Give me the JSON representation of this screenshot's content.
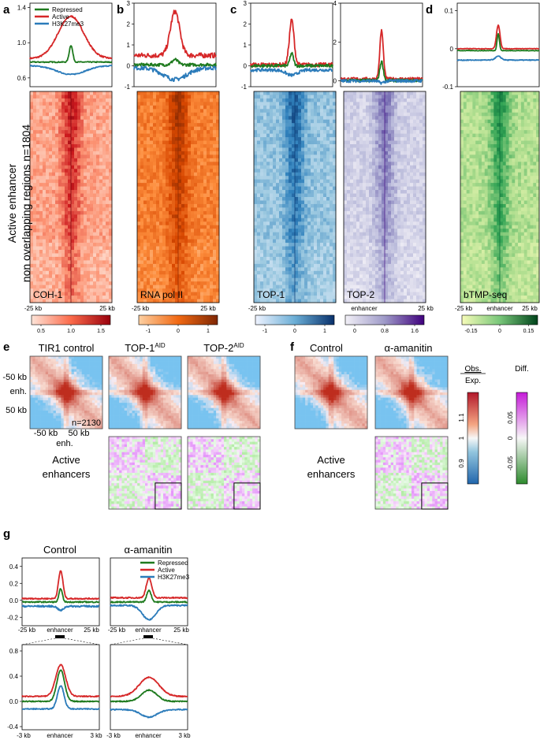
{
  "panel_labels": {
    "a": "a",
    "b": "b",
    "c": "c",
    "d": "d",
    "e": "e",
    "f": "f",
    "g": "g"
  },
  "colors": {
    "repressed": "#1e7a1e",
    "active": "#d62728",
    "h3k27me3": "#2b7bba"
  },
  "legend": {
    "repressed": "Repressed",
    "active": "Active",
    "h3k27me3": "H3K27me3"
  },
  "heatmap_ylabel_1": "Active enhancer",
  "heatmap_ylabel_2": "non overlapping regions n=1804",
  "profile_xticks": {
    "left": "-25 kb",
    "mid": "enhancer",
    "right": "25 kb"
  },
  "hic": {
    "titles": {
      "tir1": "TIR1 control",
      "top1": "TOP-1",
      "top2": "TOP-2",
      "sup": "AID",
      "control": "Control",
      "amanitin": "α-amanitin"
    },
    "yticks": [
      "-50 kb",
      "enh.",
      "50 kb"
    ],
    "xticks": [
      "-50 kb",
      "50 kb"
    ],
    "xmid": "enh.",
    "n": "n=2130",
    "row_label_1": "Active",
    "row_label_2": "enhancers",
    "cbar_obs": "Obs.",
    "cbar_exp": "Exp.",
    "cbar_diff": "Diff.",
    "cbar_obs_ticks": [
      "1.1",
      "1",
      "0.9"
    ],
    "cbar_diff_ticks": [
      "0.05",
      "0",
      "-0.05"
    ]
  },
  "g": {
    "title_control": "Control",
    "title_amanitin": "α-amanitin",
    "top_xticks": [
      "-25 kb",
      "enhancer",
      "25 kb"
    ],
    "bottom_xticks": [
      "-3 kb",
      "enhancer",
      "3 kb"
    ]
  },
  "chart_data": [
    {
      "id": "a",
      "type": "line",
      "title": "COH-1",
      "ylim": [
        0.5,
        1.45
      ],
      "yticks": [
        "0.6",
        "1.0",
        "1.4"
      ],
      "series": [
        {
          "name": "Active",
          "peak": 1.3,
          "base": 0.82,
          "width": 0.22,
          "dip": 0,
          "noise": 0.015
        },
        {
          "name": "Repressed",
          "peak": 0.97,
          "base": 0.78,
          "width": 0.03,
          "dip": 0,
          "noise": 0.01
        },
        {
          "name": "H3K27me3",
          "peak": 0.64,
          "base": 0.74,
          "width": 0.25,
          "dip": 1,
          "noise": 0.01
        }
      ],
      "heatmap": {
        "label": "COH-1",
        "cmap": "Reds",
        "cbar_ticks": [
          "0.5",
          "1.0",
          "1.5"
        ]
      }
    },
    {
      "id": "b",
      "type": "line",
      "title": "RNA pol II",
      "ylim": [
        -1,
        3
      ],
      "yticks": [
        "-1",
        "0",
        "1",
        "2",
        "3"
      ],
      "series": [
        {
          "name": "Active",
          "peak": 2.6,
          "base": 0.5,
          "width": 0.08,
          "dip": 0,
          "noise": 0.05
        },
        {
          "name": "Repressed",
          "peak": 0.3,
          "base": 0.05,
          "width": 0.05,
          "dip": 0,
          "noise": 0.03
        },
        {
          "name": "H3K27me3",
          "peak": -0.65,
          "base": -0.1,
          "width": 0.2,
          "dip": 1,
          "noise": 0.04
        }
      ],
      "heatmap": {
        "label": "RNA pol II",
        "cmap": "Oranges",
        "cbar_ticks": [
          "-1",
          "0",
          "1"
        ]
      }
    },
    {
      "id": "c1",
      "type": "line",
      "title": "TOP-1",
      "ylim": [
        -1,
        3
      ],
      "yticks": [
        "-1",
        "0",
        "1",
        "2",
        "3"
      ],
      "series": [
        {
          "name": "Active",
          "peak": 2.2,
          "base": 0.05,
          "width": 0.04,
          "dip": 0,
          "noise": 0.04
        },
        {
          "name": "Repressed",
          "peak": 0.6,
          "base": 0.0,
          "width": 0.03,
          "dip": 0,
          "noise": 0.03
        },
        {
          "name": "H3K27me3",
          "peak": -0.45,
          "base": -0.2,
          "width": 0.1,
          "dip": 1,
          "noise": 0.03
        }
      ],
      "heatmap": {
        "label": "TOP-1",
        "cmap": "Blues",
        "cbar_ticks": [
          "-1",
          "0",
          "1"
        ]
      }
    },
    {
      "id": "c2",
      "type": "line",
      "title": "TOP-2",
      "ylim": [
        -0.3,
        4
      ],
      "yticks": [
        "0",
        "2",
        "4"
      ],
      "series": [
        {
          "name": "Active",
          "peak": 2.6,
          "base": 0.1,
          "width": 0.03,
          "dip": 0,
          "noise": 0.03
        },
        {
          "name": "Repressed",
          "peak": 1.0,
          "base": 0.02,
          "width": 0.03,
          "dip": 0,
          "noise": 0.03
        },
        {
          "name": "H3K27me3",
          "peak": -0.1,
          "base": 0.0,
          "width": 0.05,
          "dip": 1,
          "noise": 0.03
        }
      ],
      "heatmap": {
        "label": "TOP-2",
        "cmap": "Purples",
        "cbar_ticks": [
          "0",
          "0.8",
          "1.6"
        ]
      }
    },
    {
      "id": "d",
      "type": "line",
      "title": "bTMP-seq",
      "ylim": [
        -0.1,
        0.12
      ],
      "yticks": [
        "-0.1",
        "0",
        "0.1"
      ],
      "series": [
        {
          "name": "Active",
          "peak": 0.062,
          "base": 0.0,
          "width": 0.03,
          "dip": 0,
          "noise": 0.006
        },
        {
          "name": "Repressed",
          "peak": 0.04,
          "base": -0.005,
          "width": 0.02,
          "dip": 0,
          "noise": 0.006
        },
        {
          "name": "H3K27me3",
          "peak": -0.02,
          "base": -0.03,
          "width": 0.05,
          "dip": 1,
          "noise": 0.008
        }
      ],
      "heatmap": {
        "label": "bTMP-seq",
        "cmap": "Greens",
        "cbar_ticks": [
          "-0.15",
          "0",
          "0.15"
        ]
      }
    },
    {
      "id": "g_ctrl_top",
      "type": "line",
      "title": "Control",
      "ylim": [
        -0.3,
        0.5
      ],
      "yticks": [
        "-0.2",
        "0.0",
        "0.2",
        "0.4"
      ],
      "series": [
        {
          "name": "Active",
          "peak": 0.35,
          "base": 0.02,
          "width": 0.04,
          "dip": 0,
          "noise": 0.015
        },
        {
          "name": "Repressed",
          "peak": 0.14,
          "base": -0.02,
          "width": 0.03,
          "dip": 0,
          "noise": 0.015
        },
        {
          "name": "H3K27me3",
          "peak": -0.12,
          "base": -0.07,
          "width": 0.05,
          "dip": 1,
          "noise": 0.02
        }
      ]
    },
    {
      "id": "g_ama_top",
      "type": "line",
      "title": "α-amanitin",
      "ylim": [
        -0.3,
        0.5
      ],
      "yticks": [],
      "series": [
        {
          "name": "Active",
          "peak": 0.26,
          "base": 0.03,
          "width": 0.05,
          "dip": 0,
          "noise": 0.015
        },
        {
          "name": "Repressed",
          "peak": 0.12,
          "base": -0.02,
          "width": 0.04,
          "dip": 0,
          "noise": 0.015
        },
        {
          "name": "H3K27me3",
          "peak": -0.23,
          "base": -0.06,
          "width": 0.12,
          "dip": 1,
          "noise": 0.015
        }
      ]
    },
    {
      "id": "g_ctrl_bot",
      "type": "line",
      "title": "",
      "ylim": [
        -0.45,
        0.9
      ],
      "yticks": [
        "-0.4",
        "0.0",
        "0.4",
        "0.8"
      ],
      "series": [
        {
          "name": "Active",
          "peak": 0.58,
          "base": 0.08,
          "width": 0.09,
          "dip": 0,
          "noise": 0.01
        },
        {
          "name": "Repressed",
          "peak": 0.5,
          "base": 0.0,
          "width": 0.07,
          "dip": 0,
          "noise": 0.01
        },
        {
          "name": "H3K27me3",
          "peak": 0.25,
          "base": -0.12,
          "width": 0.06,
          "dip": 0,
          "noise": 0.01
        }
      ]
    },
    {
      "id": "g_ama_bot",
      "type": "line",
      "title": "",
      "ylim": [
        -0.45,
        0.9
      ],
      "yticks": [],
      "series": [
        {
          "name": "Active",
          "peak": 0.38,
          "base": 0.08,
          "width": 0.18,
          "dip": 0,
          "noise": 0.01
        },
        {
          "name": "Repressed",
          "peak": 0.18,
          "base": 0.0,
          "width": 0.14,
          "dip": 0,
          "noise": 0.01
        },
        {
          "name": "H3K27me3",
          "peak": -0.25,
          "base": -0.13,
          "width": 0.15,
          "dip": 1,
          "noise": 0.01
        }
      ]
    }
  ]
}
